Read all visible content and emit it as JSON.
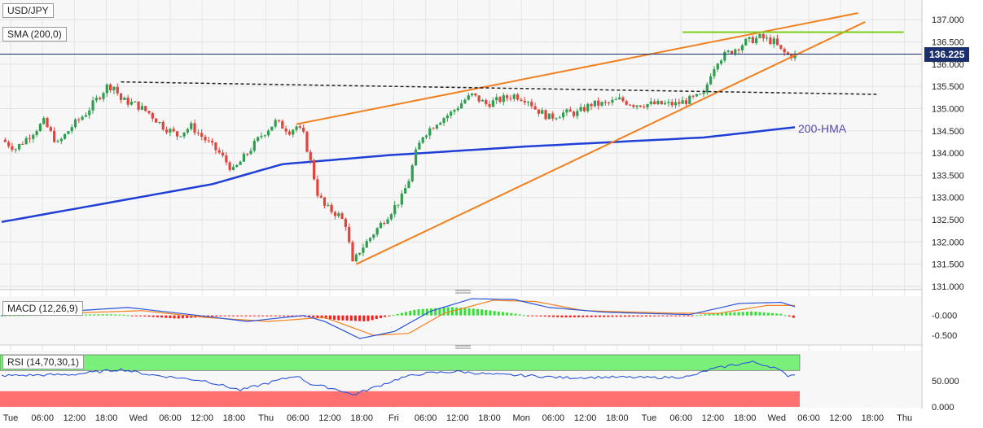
{
  "symbol": "USD/JPY",
  "sma_label": "SMA (200,0)",
  "macd_label": "MACD (12,26,9)",
  "rsi_label": "RSI (14,70,30,1)",
  "hma_label": "200-HMA",
  "last_price": "136.225",
  "colors": {
    "up": "#2e9e4f",
    "down": "#e0443b",
    "hma": "#1f3fd6",
    "trend": "#f08020",
    "resistance": "#7ccc1a",
    "macd_up": "#33e033",
    "macd_down": "#ff1a1a",
    "macd_line": "#2a55d8",
    "signal_line": "#f08020",
    "rsi_line": "#2a55d8",
    "rsi_over": "#7af07a",
    "rsi_under": "#ff7070"
  },
  "chart_data": [
    {
      "type": "candlestick",
      "title": "USD/JPY",
      "price_axis": [
        "137.000",
        "136.500",
        "136.000",
        "135.500",
        "135.000",
        "134.500",
        "134.000",
        "133.500",
        "133.000",
        "132.500",
        "132.000",
        "131.500",
        "131.000"
      ],
      "time_axis": [
        "Tue",
        "06:00",
        "12:00",
        "18:00",
        "Wed",
        "06:00",
        "12:00",
        "18:00",
        "Thu",
        "06:00",
        "12:00",
        "18:00",
        "Fri",
        "06:00",
        "12:00",
        "18:00",
        "Mon",
        "06:00",
        "12:00",
        "18:00",
        "Tue",
        "06:00",
        "12:00",
        "18:00",
        "Wed",
        "06:00",
        "12:00",
        "18:00",
        "Thu"
      ],
      "ylim": [
        131.0,
        137.15
      ],
      "price_anchors": [
        [
          0,
          134.3
        ],
        [
          4,
          134.1
        ],
        [
          8,
          134.4
        ],
        [
          12,
          134.7
        ],
        [
          16,
          134.2
        ],
        [
          20,
          134.6
        ],
        [
          24,
          134.9
        ],
        [
          28,
          135.3
        ],
        [
          30,
          135.5
        ],
        [
          32,
          135.5
        ],
        [
          34,
          135.2
        ],
        [
          38,
          135.1
        ],
        [
          42,
          134.9
        ],
        [
          46,
          134.6
        ],
        [
          50,
          134.4
        ],
        [
          54,
          134.6
        ],
        [
          58,
          134.3
        ],
        [
          62,
          134.0
        ],
        [
          66,
          133.6
        ],
        [
          70,
          134.0
        ],
        [
          74,
          134.4
        ],
        [
          78,
          134.7
        ],
        [
          82,
          134.5
        ],
        [
          84,
          134.6
        ],
        [
          86,
          134.4
        ],
        [
          88,
          133.8
        ],
        [
          90,
          133.1
        ],
        [
          92,
          132.8
        ],
        [
          96,
          132.6
        ],
        [
          98,
          132.4
        ],
        [
          100,
          131.5
        ],
        [
          102,
          131.8
        ],
        [
          106,
          132.2
        ],
        [
          110,
          132.6
        ],
        [
          114,
          133.0
        ],
        [
          116,
          133.4
        ],
        [
          118,
          134.0
        ],
        [
          120,
          134.4
        ],
        [
          124,
          134.7
        ],
        [
          128,
          134.9
        ],
        [
          132,
          135.2
        ],
        [
          134,
          135.3
        ],
        [
          136,
          135.2
        ],
        [
          138,
          135.1
        ],
        [
          142,
          135.2
        ],
        [
          146,
          135.3
        ],
        [
          150,
          135.2
        ],
        [
          152,
          135.0
        ],
        [
          156,
          134.8
        ],
        [
          160,
          134.9
        ],
        [
          164,
          134.9
        ],
        [
          168,
          135.1
        ],
        [
          172,
          135.1
        ],
        [
          176,
          135.2
        ],
        [
          180,
          135.1
        ],
        [
          184,
          135.1
        ],
        [
          188,
          135.1
        ],
        [
          192,
          135.1
        ],
        [
          196,
          135.2
        ],
        [
          200,
          135.3
        ],
        [
          202,
          135.8
        ],
        [
          204,
          136.1
        ],
        [
          208,
          136.3
        ],
        [
          212,
          136.5
        ],
        [
          216,
          136.6
        ],
        [
          220,
          136.5
        ],
        [
          222,
          136.3
        ],
        [
          224,
          136.2
        ],
        [
          226,
          136.2
        ]
      ],
      "hma_200": [
        [
          0,
          132.45
        ],
        [
          60,
          133.3
        ],
        [
          80,
          133.75
        ],
        [
          110,
          133.95
        ],
        [
          150,
          134.15
        ],
        [
          200,
          134.35
        ],
        [
          226,
          134.58
        ]
      ],
      "wedge_upper": [
        [
          84,
          134.65
        ],
        [
          244,
          137.15
        ]
      ],
      "wedge_lower": [
        [
          101,
          131.5
        ],
        [
          246,
          136.95
        ]
      ],
      "previous_resistance": [
        [
          34,
          135.6
        ],
        [
          250,
          135.32
        ]
      ],
      "horizontal_resistance": [
        [
          194,
          136.72
        ],
        [
          257,
          136.72
        ]
      ],
      "last_price": 136.225
    },
    {
      "type": "bar",
      "title": "MACD (12,26,9)",
      "ylim": [
        -0.62,
        0.32
      ],
      "y_ticks": [
        "-0.000",
        "-0.500"
      ],
      "histogram_anchors": [
        [
          0,
          0.0
        ],
        [
          20,
          0.02
        ],
        [
          30,
          0.03
        ],
        [
          34,
          0.02
        ],
        [
          40,
          -0.02
        ],
        [
          50,
          -0.08
        ],
        [
          60,
          -0.03
        ],
        [
          70,
          0.0
        ],
        [
          80,
          -0.01
        ],
        [
          88,
          -0.04
        ],
        [
          96,
          -0.12
        ],
        [
          104,
          -0.15
        ],
        [
          112,
          0.02
        ],
        [
          118,
          0.15
        ],
        [
          128,
          0.21
        ],
        [
          136,
          0.16
        ],
        [
          146,
          0.05
        ],
        [
          150,
          -0.01
        ],
        [
          160,
          -0.05
        ],
        [
          180,
          -0.03
        ],
        [
          196,
          -0.01
        ],
        [
          204,
          0.06
        ],
        [
          214,
          0.1
        ],
        [
          222,
          0.04
        ],
        [
          226,
          -0.07
        ]
      ],
      "macd_anchors": [
        [
          0,
          0.0
        ],
        [
          36,
          0.2
        ],
        [
          56,
          0.0
        ],
        [
          70,
          -0.15
        ],
        [
          86,
          0.0
        ],
        [
          92,
          -0.15
        ],
        [
          102,
          -0.58
        ],
        [
          112,
          -0.4
        ],
        [
          122,
          0.1
        ],
        [
          134,
          0.42
        ],
        [
          146,
          0.4
        ],
        [
          156,
          0.2
        ],
        [
          172,
          0.08
        ],
        [
          196,
          0.02
        ],
        [
          210,
          0.3
        ],
        [
          222,
          0.33
        ],
        [
          226,
          0.22
        ]
      ],
      "signal_anchors": [
        [
          0,
          0.0
        ],
        [
          40,
          0.12
        ],
        [
          58,
          -0.05
        ],
        [
          76,
          -0.15
        ],
        [
          92,
          -0.05
        ],
        [
          106,
          -0.5
        ],
        [
          116,
          -0.45
        ],
        [
          126,
          0.05
        ],
        [
          140,
          0.38
        ],
        [
          152,
          0.35
        ],
        [
          166,
          0.12
        ],
        [
          190,
          0.06
        ],
        [
          204,
          0.05
        ],
        [
          218,
          0.25
        ],
        [
          226,
          0.25
        ]
      ]
    },
    {
      "type": "line",
      "title": "RSI (14,70,30,1)",
      "ylim": [
        0,
        100
      ],
      "y_ticks": [
        "50.000",
        "0.000"
      ],
      "overbought": 70,
      "oversold": 30,
      "rsi_anchors": [
        [
          0,
          60
        ],
        [
          20,
          62
        ],
        [
          34,
          72
        ],
        [
          42,
          62
        ],
        [
          58,
          50
        ],
        [
          68,
          32
        ],
        [
          76,
          46
        ],
        [
          84,
          60
        ],
        [
          88,
          44
        ],
        [
          96,
          33
        ],
        [
          100,
          23
        ],
        [
          106,
          37
        ],
        [
          114,
          56
        ],
        [
          120,
          64
        ],
        [
          130,
          68
        ],
        [
          140,
          62
        ],
        [
          150,
          60
        ],
        [
          160,
          56
        ],
        [
          172,
          57
        ],
        [
          186,
          56
        ],
        [
          196,
          58
        ],
        [
          202,
          72
        ],
        [
          208,
          80
        ],
        [
          214,
          86
        ],
        [
          220,
          76
        ],
        [
          224,
          60
        ],
        [
          226,
          63
        ]
      ]
    }
  ]
}
